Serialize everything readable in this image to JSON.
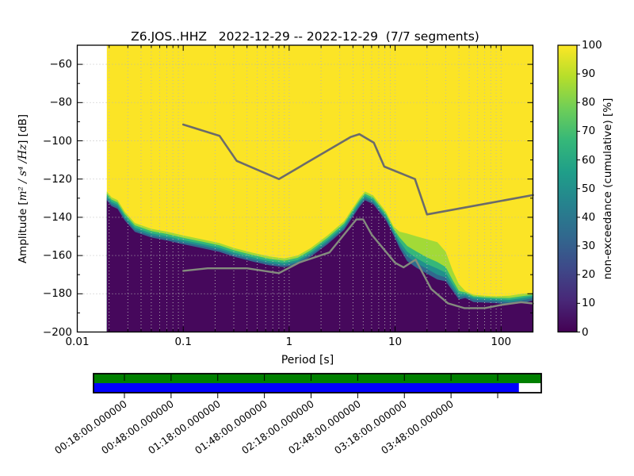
{
  "header": {
    "title": "Z6.JOS..HHZ   2022-12-29 -- 2022-12-29  (7/7 segments)"
  },
  "chart_data": {
    "type": "heatmap",
    "subtype": "ppsd-cumulative-spectrogram",
    "title": "Z6.JOS..HHZ   2022-12-29 -- 2022-12-29  (7/7 segments)",
    "xlabel": "Period [s]",
    "ylabel_prefix": "Amplitude [",
    "ylabel_math": "m² / s⁴ /Hz",
    "ylabel_suffix": "] [dB]",
    "xscale": "log",
    "xlim": [
      0.01,
      200
    ],
    "ylim": [
      -200,
      -50
    ],
    "grid": true,
    "x_tick_values": [
      0.01,
      0.1,
      1,
      10,
      100
    ],
    "x_tick_labels": [
      "0.01",
      "0.1",
      "1",
      "10",
      "100"
    ],
    "y_tick_values": [
      -60,
      -80,
      -100,
      -120,
      -140,
      -160,
      -180,
      -200
    ],
    "y_tick_labels": [
      "−60",
      "−80",
      "−100",
      "−120",
      "−140",
      "−160",
      "−180",
      "−200"
    ],
    "y_grid_values": [
      -60,
      -80,
      -100,
      -120,
      -140,
      -160,
      -180
    ],
    "colors": {
      "level100": "#fbe426",
      "level80": "#a2da37",
      "level60": "#35b779",
      "level40": "#21918c",
      "level20": "#31688e",
      "level0": "#46085c",
      "nhnm_line": "#6b6b6b",
      "nlnm_line": "#848c7e",
      "grid_line": "#b8b8b8",
      "viridis": [
        "#440154",
        "#482878",
        "#3e4989",
        "#31688e",
        "#26828e",
        "#1f9e89",
        "#35b779",
        "#6ece58",
        "#b5de2b",
        "#fde725"
      ]
    },
    "colorbar": {
      "label": "non-exceedance (cumulative) [%]",
      "colormap": "viridis",
      "tick_values": [
        0,
        10,
        20,
        30,
        40,
        50,
        60,
        70,
        80,
        90,
        100
      ],
      "tick_labels": [
        "0",
        "10",
        "20",
        "30",
        "40",
        "50",
        "60",
        "70",
        "80",
        "90",
        "100"
      ]
    },
    "noise_models": {
      "nhnm": [
        [
          0.1,
          -91.5
        ],
        [
          0.22,
          -97.4
        ],
        [
          0.32,
          -110.5
        ],
        [
          0.8,
          -120
        ],
        [
          3.8,
          -98
        ],
        [
          4.6,
          -96.5
        ],
        [
          6.3,
          -101
        ],
        [
          7.9,
          -113.5
        ],
        [
          15.4,
          -120
        ],
        [
          20,
          -138.5
        ],
        [
          200,
          -128.4
        ]
      ],
      "nlnm": [
        [
          0.1,
          -168
        ],
        [
          0.17,
          -166.7
        ],
        [
          0.4,
          -166.7
        ],
        [
          0.8,
          -169.2
        ],
        [
          1.24,
          -163.7
        ],
        [
          2.4,
          -158.4
        ],
        [
          4.3,
          -141.1
        ],
        [
          5,
          -141.1
        ],
        [
          6,
          -149
        ],
        [
          10,
          -163.8
        ],
        [
          12,
          -166.2
        ],
        [
          15.6,
          -162.1
        ],
        [
          21.9,
          -177.5
        ],
        [
          31.6,
          -185
        ],
        [
          45,
          -187.5
        ],
        [
          70,
          -187.5
        ],
        [
          101,
          -185.8
        ],
        [
          154,
          -184.4
        ],
        [
          200,
          -185.1
        ]
      ]
    },
    "levels": {
      "description": "Amplitude [dB] boundaries of the cumulative non-exceedance shading vs period [s]",
      "periods": [
        0.019,
        0.021,
        0.024,
        0.028,
        0.035,
        0.05,
        0.07,
        0.1,
        0.15,
        0.22,
        0.3,
        0.45,
        0.65,
        0.9,
        1.2,
        1.6,
        2.3,
        3.3,
        4.6,
        5.2,
        6.2,
        8.2,
        9.7,
        11,
        13,
        16,
        20,
        25,
        30,
        35,
        40,
        46,
        55,
        70,
        90,
        120,
        160,
        200
      ],
      "p90": [
        -126.5,
        -129.5,
        -131,
        -137,
        -143,
        -146,
        -147.5,
        -149.5,
        -151.5,
        -153.5,
        -156,
        -158.5,
        -160.5,
        -161.5,
        -160,
        -156,
        -149.5,
        -142,
        -130,
        -126.5,
        -128.5,
        -137,
        -145,
        -147.5,
        -148.5,
        -150,
        -151.5,
        -153,
        -158,
        -168,
        -175,
        -178.5,
        -180.5,
        -181,
        -181.3,
        -181,
        -180,
        -179.5
      ],
      "p70": [
        -127.7,
        -130.7,
        -132.2,
        -138.2,
        -144.2,
        -147.2,
        -148.7,
        -150.7,
        -152.7,
        -154.7,
        -157.2,
        -159.7,
        -161.7,
        -162.7,
        -161.2,
        -157.2,
        -150.7,
        -143.2,
        -131.2,
        -127.7,
        -129.7,
        -138.2,
        -146.2,
        -150.5,
        -155,
        -158,
        -161,
        -163.4,
        -166,
        -173,
        -178.5,
        -179.3,
        -181.3,
        -181.8,
        -182.1,
        -182.2,
        -181.2,
        -180.5
      ],
      "p50": [
        -128.9,
        -131.9,
        -133.4,
        -139.4,
        -145.4,
        -148.4,
        -149.9,
        -151.9,
        -153.9,
        -155.9,
        -158.4,
        -160.9,
        -162.9,
        -163.9,
        -162.4,
        -158.4,
        -151.9,
        -144.4,
        -132.4,
        -128.9,
        -130.9,
        -139.4,
        -147.4,
        -152.5,
        -158,
        -161.5,
        -164.5,
        -166.8,
        -169,
        -175,
        -180,
        -180.2,
        -182,
        -182.5,
        -182.8,
        -183.2,
        -182.2,
        -181.2
      ],
      "p30": [
        -130,
        -133,
        -134.5,
        -140.5,
        -146.5,
        -149.5,
        -151,
        -153,
        -155,
        -157,
        -159.5,
        -162,
        -164,
        -165,
        -163.5,
        -159.5,
        -153,
        -145.5,
        -133.5,
        -130,
        -132,
        -140.5,
        -148.5,
        -154.5,
        -160.5,
        -164,
        -167,
        -170,
        -171.5,
        -177,
        -181.5,
        -181.2,
        -183,
        -183.4,
        -183.7,
        -184.4,
        -183.4,
        -182.2
      ],
      "p10": [
        -131.1,
        -134.1,
        -135.6,
        -141.6,
        -147.6,
        -150.6,
        -152.1,
        -154.1,
        -156.1,
        -158.1,
        -160.6,
        -163.1,
        -165.1,
        -166.1,
        -164.6,
        -160.6,
        -154.1,
        -146.6,
        -134.6,
        -131.1,
        -133.1,
        -141.6,
        -149.6,
        -156,
        -163,
        -166.5,
        -169.5,
        -172.5,
        -173.5,
        -178.5,
        -183,
        -182.2,
        -184.3,
        -184.6,
        -184.9,
        -185.6,
        -184.8,
        -183.5
      ]
    },
    "timeline": {
      "labels": [
        "00:18:00.000000",
        "00:48:00.000000",
        "01:18:00.000000",
        "01:48:00.000000",
        "02:18:00.000000",
        "02:48:00.000000",
        "03:18:00.000000",
        "03:48:00.000000"
      ],
      "top_row_color": "#008000",
      "bottom_row_color": "#0000ff",
      "top_row_fraction": 1.0,
      "bottom_row_fraction": 0.95
    }
  }
}
